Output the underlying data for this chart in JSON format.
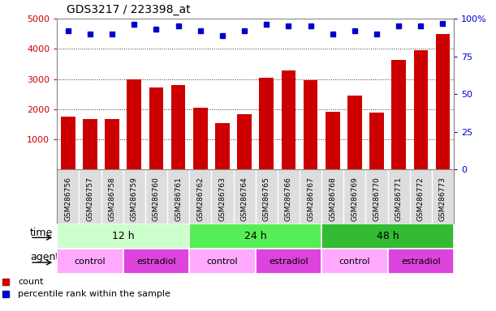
{
  "title": "GDS3217 / 223398_at",
  "samples": [
    "GSM286756",
    "GSM286757",
    "GSM286758",
    "GSM286759",
    "GSM286760",
    "GSM286761",
    "GSM286762",
    "GSM286763",
    "GSM286764",
    "GSM286765",
    "GSM286766",
    "GSM286767",
    "GSM286768",
    "GSM286769",
    "GSM286770",
    "GSM286771",
    "GSM286772",
    "GSM286773"
  ],
  "counts": [
    1750,
    1680,
    1660,
    3000,
    2720,
    2790,
    2040,
    1550,
    1820,
    3050,
    3280,
    2960,
    1910,
    2440,
    1900,
    3620,
    3950,
    4490
  ],
  "percentile_ranks": [
    92,
    90,
    90,
    96,
    93,
    95,
    92,
    89,
    92,
    96,
    95,
    95,
    90,
    92,
    90,
    95,
    95,
    97
  ],
  "bar_color": "#cc0000",
  "dot_color": "#0000cc",
  "ylim_left": [
    0,
    5000
  ],
  "ylim_right": [
    0,
    100
  ],
  "yticks_left": [
    1000,
    2000,
    3000,
    4000,
    5000
  ],
  "yticks_right": [
    0,
    25,
    50,
    75,
    100
  ],
  "time_groups": [
    {
      "label": "12 h",
      "start": 0,
      "end": 6
    },
    {
      "label": "24 h",
      "start": 6,
      "end": 12
    },
    {
      "label": "48 h",
      "start": 12,
      "end": 18
    }
  ],
  "time_colors": [
    "#ccffcc",
    "#55ee55",
    "#33bb33"
  ],
  "agent_groups": [
    {
      "label": "control",
      "start": 0,
      "end": 3
    },
    {
      "label": "estradiol",
      "start": 3,
      "end": 6
    },
    {
      "label": "control",
      "start": 6,
      "end": 9
    },
    {
      "label": "estradiol",
      "start": 9,
      "end": 12
    },
    {
      "label": "control",
      "start": 12,
      "end": 15
    },
    {
      "label": "estradiol",
      "start": 15,
      "end": 18
    }
  ],
  "agent_colors": {
    "control": "#ffaaff",
    "estradiol": "#dd44dd"
  },
  "bg_color": "#ffffff",
  "grid_color": "#000000",
  "tick_label_color_left": "#cc0000",
  "tick_label_color_right": "#0000cc",
  "time_label": "time",
  "agent_label": "agent",
  "legend_count": "count",
  "legend_percentile": "percentile rank within the sample",
  "xlabel_bg": "#dddddd",
  "top_label_5000": "5000",
  "top_label_100pct": "100%"
}
